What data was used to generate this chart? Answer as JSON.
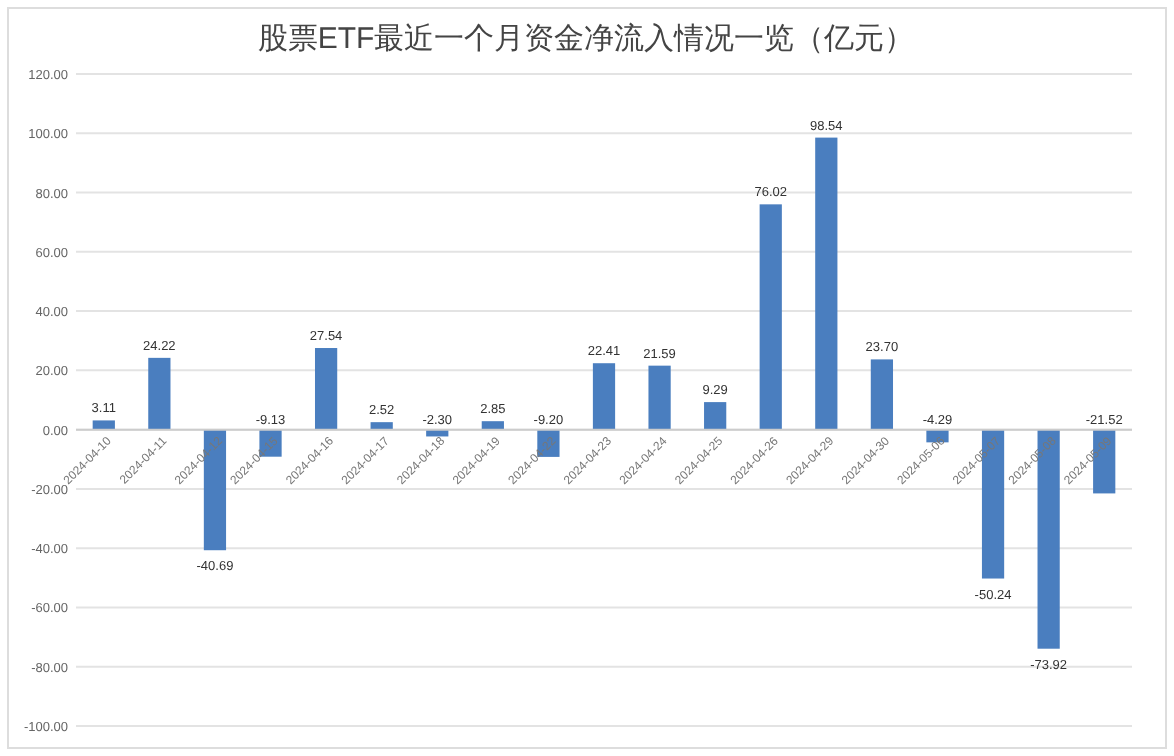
{
  "chart_data": {
    "type": "bar",
    "title": "股票ETF最近一个月资金净流入情况一览（亿元）",
    "categories": [
      "2024-04-10",
      "2024-04-11",
      "2024-04-12",
      "2024-04-15",
      "2024-04-16",
      "2024-04-17",
      "2024-04-18",
      "2024-04-19",
      "2024-04-22",
      "2024-04-23",
      "2024-04-24",
      "2024-04-25",
      "2024-04-26",
      "2024-04-29",
      "2024-04-30",
      "2024-05-06",
      "2024-05-07",
      "2024-05-08",
      "2024-05-09"
    ],
    "values": [
      3.11,
      24.22,
      -40.69,
      -9.13,
      27.54,
      2.52,
      -2.3,
      2.85,
      -9.2,
      22.41,
      21.59,
      9.29,
      76.02,
      98.54,
      23.7,
      -4.29,
      -50.24,
      -73.92,
      -21.52
    ],
    "value_labels": [
      "3.11",
      "24.22",
      "-40.69",
      "-9.13",
      "27.54",
      "2.52",
      "-2.30",
      "2.85",
      "-9.20",
      "22.41",
      "21.59",
      "9.29",
      "76.02",
      "98.54",
      "23.70",
      "-4.29",
      "-50.24",
      "-73.92",
      "-21.52"
    ],
    "color": "#4a7ebf",
    "ylim": [
      -100,
      120
    ],
    "yticks": [
      {
        "value": -100,
        "label": "-100.00"
      },
      {
        "value": -80,
        "label": "-80.00"
      },
      {
        "value": -60,
        "label": "-60.00"
      },
      {
        "value": -40,
        "label": "-40.00"
      },
      {
        "value": -20,
        "label": "-20.00"
      },
      {
        "value": 0,
        "label": "0.00"
      },
      {
        "value": 20,
        "label": "20.00"
      },
      {
        "value": 40,
        "label": "40.00"
      },
      {
        "value": 60,
        "label": "60.00"
      },
      {
        "value": 80,
        "label": "80.00"
      },
      {
        "value": 100,
        "label": "100.00"
      },
      {
        "value": 120,
        "label": "120.00"
      }
    ],
    "grid": "y"
  }
}
